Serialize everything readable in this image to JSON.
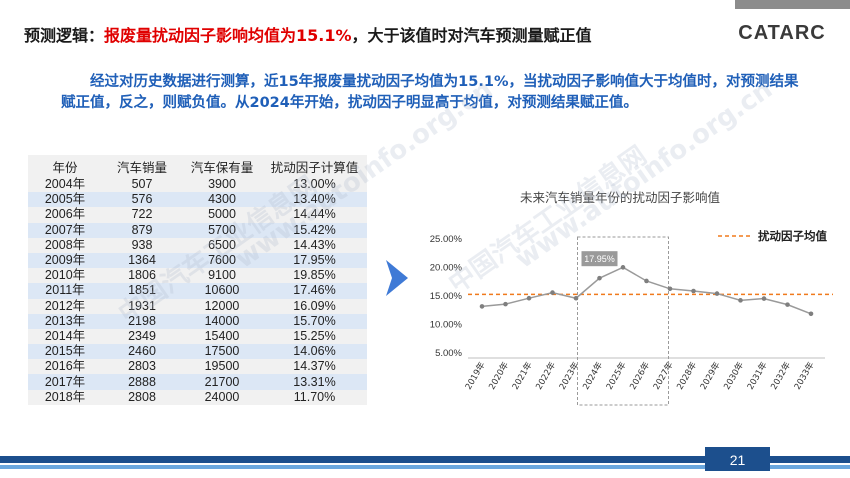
{
  "header": {
    "title_prefix": "预测逻辑：",
    "title_highlight": "报废量扰动因子影响均值为15.1%",
    "title_suffix": "，大于该值时对汽车预测量赋正值",
    "logo_text": "CATARC"
  },
  "paragraph": "经过对历史数据进行测算，近15年报废量扰动因子均值为15.1%，当扰动因子影响值大于均值时，对预测结果赋正值，反之，则赋负值。从2024年开始，扰动因子明显高于均值，对预测结果赋正值。",
  "table": {
    "headers": [
      "年份",
      "汽车销量",
      "汽车保有量",
      "扰动因子计算值"
    ],
    "rows": [
      [
        "2004年",
        "507",
        "3900",
        "13.00%"
      ],
      [
        "2005年",
        "576",
        "4300",
        "13.40%"
      ],
      [
        "2006年",
        "722",
        "5000",
        "14.44%"
      ],
      [
        "2007年",
        "879",
        "5700",
        "15.42%"
      ],
      [
        "2008年",
        "938",
        "6500",
        "14.43%"
      ],
      [
        "2009年",
        "1364",
        "7600",
        "17.95%"
      ],
      [
        "2010年",
        "1806",
        "9100",
        "19.85%"
      ],
      [
        "2011年",
        "1851",
        "10600",
        "17.46%"
      ],
      [
        "2012年",
        "1931",
        "12000",
        "16.09%"
      ],
      [
        "2013年",
        "2198",
        "14000",
        "15.70%"
      ],
      [
        "2014年",
        "2349",
        "15400",
        "15.25%"
      ],
      [
        "2015年",
        "2460",
        "17500",
        "14.06%"
      ],
      [
        "2016年",
        "2803",
        "19500",
        "14.37%"
      ],
      [
        "2017年",
        "2888",
        "21700",
        "13.31%"
      ],
      [
        "2018年",
        "2808",
        "24000",
        "11.70%"
      ]
    ]
  },
  "chart_data": {
    "type": "line",
    "title": "未来汽车销量年份的扰动因子影响值",
    "categories": [
      "2019年",
      "2020年",
      "2021年",
      "2022年",
      "2023年",
      "2024年",
      "2025年",
      "2026年",
      "2027年",
      "2028年",
      "2029年",
      "2030年",
      "2031年",
      "2032年",
      "2033年"
    ],
    "series": [
      {
        "values": [
          13.0,
          13.4,
          14.44,
          15.42,
          14.43,
          17.95,
          19.85,
          17.46,
          16.09,
          15.7,
          15.25,
          14.06,
          14.37,
          13.31,
          11.7
        ],
        "color": "#9a9a9a"
      }
    ],
    "reference_line": {
      "name": "扰动因子均值",
      "value": 15.1,
      "color": "#f07a1c"
    },
    "highlight": {
      "from": "2024年",
      "to": "2026年",
      "label": "17.95%"
    },
    "yticks": [
      "5.00%",
      "10.00%",
      "15.00%",
      "20.00%",
      "25.00%"
    ],
    "ylim": [
      5,
      25
    ],
    "legend_position": "top-right",
    "grid": false
  },
  "page_number": "21",
  "watermarks": [
    "中国汽车工业信息网",
    "www.autoinfo.org.cn"
  ]
}
